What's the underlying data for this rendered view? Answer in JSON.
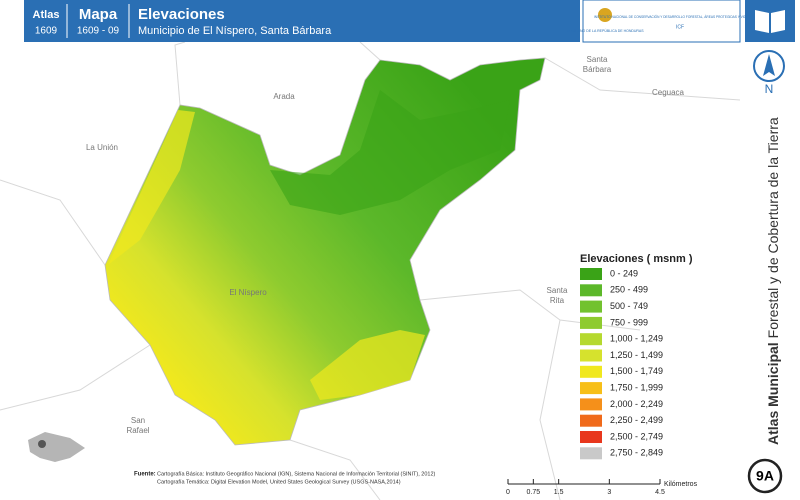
{
  "header": {
    "atlas_label": "Atlas",
    "atlas_code": "1609",
    "mapa_label": "Mapa",
    "mapa_code": "1609 - 09",
    "title": "Elevaciones",
    "subtitle": "Municipio de El Níspero, Santa Bárbara",
    "logo_left": "GOBIERNO DE LA REPÚBLICA DE HONDURAS",
    "logo_right": "INSTITUTO NACIONAL DE CONSERVACIÓN Y DESARROLLO FORESTAL, ÁREAS PROTEGIDAS Y VIDA SILVESTRE",
    "logo_right_short": "ICF"
  },
  "place_labels": [
    "Arada",
    "La Unión",
    "Santa",
    "Bárbara",
    "Ceguaca",
    "El Níspero",
    "Santa",
    "Rita",
    "San",
    "Rafael"
  ],
  "legend": {
    "title": "Elevaciones ( msnm )",
    "items": [
      {
        "label": "0 - 249",
        "color": "#3aa317"
      },
      {
        "label": "250 - 499",
        "color": "#5cb82a"
      },
      {
        "label": "500 - 749",
        "color": "#72c22f"
      },
      {
        "label": "750 - 999",
        "color": "#8ecb2f"
      },
      {
        "label": "1,000 - 1,249",
        "color": "#b5d92f"
      },
      {
        "label": "1,250 - 1,499",
        "color": "#d6e22d"
      },
      {
        "label": "1,500 - 1,749",
        "color": "#f0e81e"
      },
      {
        "label": "1,750 - 1,999",
        "color": "#f7bf18"
      },
      {
        "label": "2,000 - 2,249",
        "color": "#f5901a"
      },
      {
        "label": "2,250 - 2,499",
        "color": "#f06a1a"
      },
      {
        "label": "2,500 - 2,749",
        "color": "#e8371d"
      },
      {
        "label": "2,750 - 2,849",
        "color": "#c9c9c9"
      }
    ]
  },
  "scale": {
    "ticks": [
      0,
      0.75,
      1.5,
      3,
      4.5
    ],
    "unit": "Kilómetros"
  },
  "source": {
    "label": "Fuente:",
    "lines": [
      "Cartografía Básica: Instituto Geográfico Nacional (IGN), Sistema Nacional de Información Territorial (SINIT), 2012)",
      "Cartografía Temática: Digital Elevation Model, United States Geological Survey (USGS-NASA,2014)"
    ]
  },
  "side": {
    "north": "N",
    "atlas_bold": "Atlas Municipal",
    "atlas_rest": "Forestal y de Cobertura de la Tierra",
    "badge": "9A"
  }
}
